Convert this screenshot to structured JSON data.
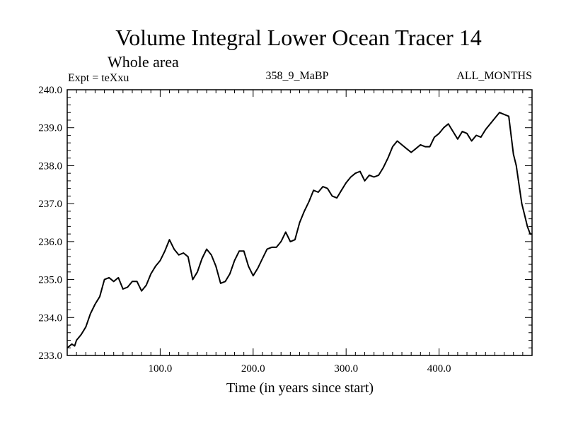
{
  "chart_data": {
    "type": "line",
    "title": "Volume Integral Lower Ocean Tracer 14",
    "subtitle": "Whole area",
    "annotations": {
      "left": "Expt = teXxu",
      "center": "358_9_MaBP",
      "right": "ALL_MONTHS"
    },
    "xlabel": "Time (in years since start)",
    "ylabel": "",
    "xlim": [
      0,
      500
    ],
    "ylim": [
      233.0,
      240.0
    ],
    "xticks": [
      100,
      200,
      300,
      400
    ],
    "xtick_labels": [
      "100.0",
      "200.0",
      "300.0",
      "400.0"
    ],
    "yticks": [
      233,
      234,
      235,
      236,
      237,
      238,
      239,
      240
    ],
    "ytick_labels": [
      "233.0",
      "234.0",
      "235.0",
      "236.0",
      "237.0",
      "238.0",
      "239.0",
      "240.0"
    ],
    "grid": false,
    "series": [
      {
        "name": "Lower Ocean Tracer 14",
        "color": "#000000",
        "x": [
          0,
          5,
          8,
          10,
          15,
          20,
          25,
          30,
          35,
          40,
          45,
          50,
          55,
          60,
          65,
          70,
          75,
          80,
          85,
          90,
          95,
          100,
          105,
          110,
          115,
          120,
          125,
          130,
          135,
          140,
          145,
          150,
          155,
          160,
          165,
          170,
          175,
          180,
          185,
          190,
          195,
          200,
          205,
          210,
          215,
          220,
          225,
          230,
          235,
          240,
          245,
          250,
          255,
          260,
          265,
          270,
          275,
          280,
          285,
          290,
          295,
          300,
          305,
          310,
          315,
          320,
          325,
          330,
          335,
          340,
          345,
          350,
          355,
          360,
          365,
          370,
          375,
          380,
          385,
          390,
          395,
          400,
          405,
          410,
          415,
          420,
          425,
          430,
          435,
          440,
          445,
          450,
          455,
          460,
          465,
          470,
          475,
          480,
          483,
          486,
          489,
          492,
          495,
          498,
          500
        ],
        "y": [
          233.2,
          233.3,
          233.25,
          233.4,
          233.55,
          233.75,
          234.1,
          234.35,
          234.55,
          235.0,
          235.05,
          234.95,
          235.05,
          234.75,
          234.8,
          234.95,
          234.95,
          234.7,
          234.85,
          235.15,
          235.35,
          235.5,
          235.75,
          236.05,
          235.8,
          235.65,
          235.7,
          235.6,
          235.0,
          235.2,
          235.55,
          235.8,
          235.65,
          235.35,
          234.9,
          234.95,
          235.15,
          235.5,
          235.75,
          235.75,
          235.35,
          235.1,
          235.3,
          235.55,
          235.8,
          235.85,
          235.85,
          236.0,
          236.25,
          236.0,
          236.05,
          236.5,
          236.8,
          237.05,
          237.35,
          237.3,
          237.45,
          237.4,
          237.2,
          237.15,
          237.35,
          237.55,
          237.7,
          237.8,
          237.85,
          237.6,
          237.75,
          237.7,
          237.75,
          237.95,
          238.2,
          238.5,
          238.65,
          238.55,
          238.45,
          238.35,
          238.45,
          238.55,
          238.5,
          238.5,
          238.75,
          238.85,
          239.0,
          239.1,
          238.9,
          238.7,
          238.9,
          238.85,
          238.65,
          238.8,
          238.75,
          238.95,
          239.1,
          239.25,
          239.4,
          239.35,
          239.3,
          238.3,
          238.0,
          237.5,
          237.0,
          236.7,
          236.4,
          236.2,
          236.2
        ]
      }
    ]
  }
}
